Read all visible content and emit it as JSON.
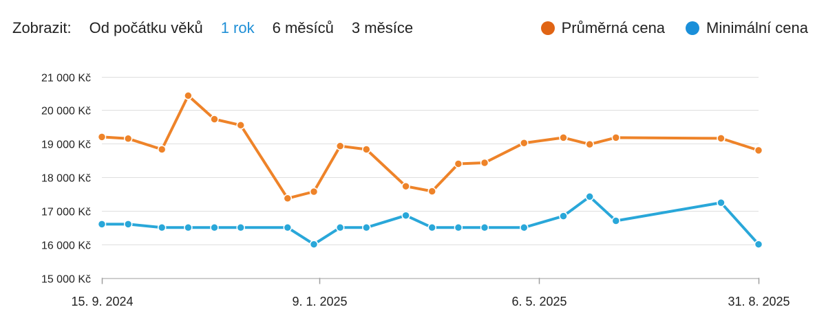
{
  "toolbar": {
    "label": "Zobrazit:",
    "ranges": [
      "Od počátku věků",
      "1 rok",
      "6 měsíců",
      "3 měsíce"
    ],
    "active_index": 1,
    "active_color": "#1f8fd6"
  },
  "legend": [
    {
      "name": "Průměrná cena",
      "color": "#e06414"
    },
    {
      "name": "Minimální cena",
      "color": "#1a8fd9"
    }
  ],
  "chart_data": {
    "type": "line",
    "title": "",
    "xlabel": "",
    "ylabel": "",
    "ylim": [
      15000,
      21000
    ],
    "y_ticks": [
      15000,
      16000,
      17000,
      18000,
      19000,
      20000,
      21000
    ],
    "y_tick_labels": [
      "15 000 Kč",
      "16 000 Kč",
      "17 000 Kč",
      "18 000 Kč",
      "19 000 Kč",
      "20 000 Kč",
      "21 000 Kč"
    ],
    "xlim": [
      "2024-09-15",
      "2025-08-31"
    ],
    "x_ticks": [
      "2024-09-15",
      "2025-01-09",
      "2025-05-06",
      "2025-08-31"
    ],
    "x_tick_labels": [
      "15. 9. 2024",
      "9. 1. 2025",
      "6. 5. 2025",
      "31. 8. 2025"
    ],
    "grid": true,
    "legend_position": "top-right",
    "series": [
      {
        "name": "Průměrná cena",
        "color": "#ee8329",
        "points": [
          {
            "x": "2024-09-15",
            "y": 19200
          },
          {
            "x": "2024-09-29",
            "y": 19150
          },
          {
            "x": "2024-10-17",
            "y": 18830
          },
          {
            "x": "2024-10-31",
            "y": 20430
          },
          {
            "x": "2024-11-14",
            "y": 19730
          },
          {
            "x": "2024-11-28",
            "y": 19550
          },
          {
            "x": "2024-12-23",
            "y": 17370
          },
          {
            "x": "2025-01-06",
            "y": 17570
          },
          {
            "x": "2025-01-20",
            "y": 18930
          },
          {
            "x": "2025-02-03",
            "y": 18830
          },
          {
            "x": "2025-02-24",
            "y": 17730
          },
          {
            "x": "2025-03-10",
            "y": 17580
          },
          {
            "x": "2025-03-24",
            "y": 18400
          },
          {
            "x": "2025-04-07",
            "y": 18430
          },
          {
            "x": "2025-04-28",
            "y": 19020
          },
          {
            "x": "2025-05-19",
            "y": 19180
          },
          {
            "x": "2025-06-02",
            "y": 18980
          },
          {
            "x": "2025-06-16",
            "y": 19180
          },
          {
            "x": "2025-08-11",
            "y": 19160
          },
          {
            "x": "2025-08-31",
            "y": 18800
          }
        ]
      },
      {
        "name": "Minimální cena",
        "color": "#29a7d9",
        "points": [
          {
            "x": "2024-09-15",
            "y": 16600
          },
          {
            "x": "2024-09-29",
            "y": 16600
          },
          {
            "x": "2024-10-17",
            "y": 16500
          },
          {
            "x": "2024-10-31",
            "y": 16500
          },
          {
            "x": "2024-11-14",
            "y": 16500
          },
          {
            "x": "2024-11-28",
            "y": 16500
          },
          {
            "x": "2024-12-23",
            "y": 16500
          },
          {
            "x": "2025-01-06",
            "y": 16000
          },
          {
            "x": "2025-01-20",
            "y": 16500
          },
          {
            "x": "2025-02-03",
            "y": 16500
          },
          {
            "x": "2025-02-24",
            "y": 16860
          },
          {
            "x": "2025-03-10",
            "y": 16500
          },
          {
            "x": "2025-03-24",
            "y": 16500
          },
          {
            "x": "2025-04-07",
            "y": 16500
          },
          {
            "x": "2025-04-28",
            "y": 16500
          },
          {
            "x": "2025-05-19",
            "y": 16840
          },
          {
            "x": "2025-06-02",
            "y": 17420
          },
          {
            "x": "2025-06-16",
            "y": 16700
          },
          {
            "x": "2025-08-11",
            "y": 17240
          },
          {
            "x": "2025-08-31",
            "y": 16000
          }
        ]
      }
    ]
  }
}
